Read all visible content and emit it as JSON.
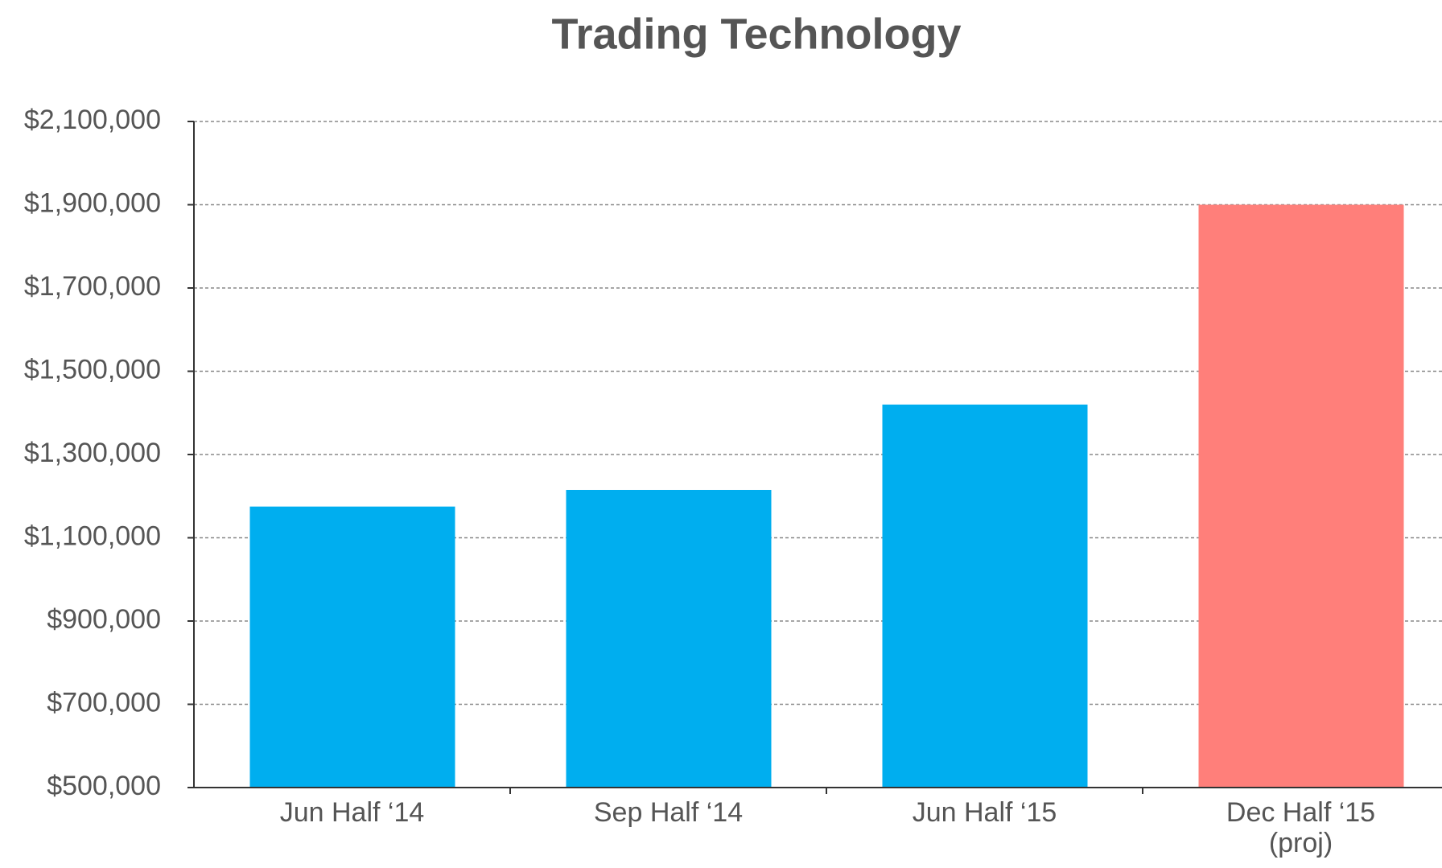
{
  "chart_data": {
    "type": "bar",
    "title": "Trading Technology",
    "categories": [
      "Jun Half ‘14",
      "Sep Half ‘14",
      "Jun Half ‘15",
      "Dec Half ‘15\n(proj)"
    ],
    "values": [
      1175000,
      1215000,
      1420000,
      1900000
    ],
    "colors": [
      "#00aeef",
      "#00aeef",
      "#00aeef",
      "#ff7f7a"
    ],
    "ylim": [
      500000,
      2100000
    ],
    "yticks": [
      {
        "value": 500000,
        "label": "$500,000"
      },
      {
        "value": 700000,
        "label": "$700,000"
      },
      {
        "value": 900000,
        "label": "$900,000"
      },
      {
        "value": 1100000,
        "label": "$1,100,000"
      },
      {
        "value": 1300000,
        "label": "$1,300,000"
      },
      {
        "value": 1500000,
        "label": "$1,500,000"
      },
      {
        "value": 1700000,
        "label": "$1,700,000"
      },
      {
        "value": 1900000,
        "label": "$1,900,000"
      },
      {
        "value": 2100000,
        "label": "$2,100,000"
      }
    ],
    "grid": true
  }
}
